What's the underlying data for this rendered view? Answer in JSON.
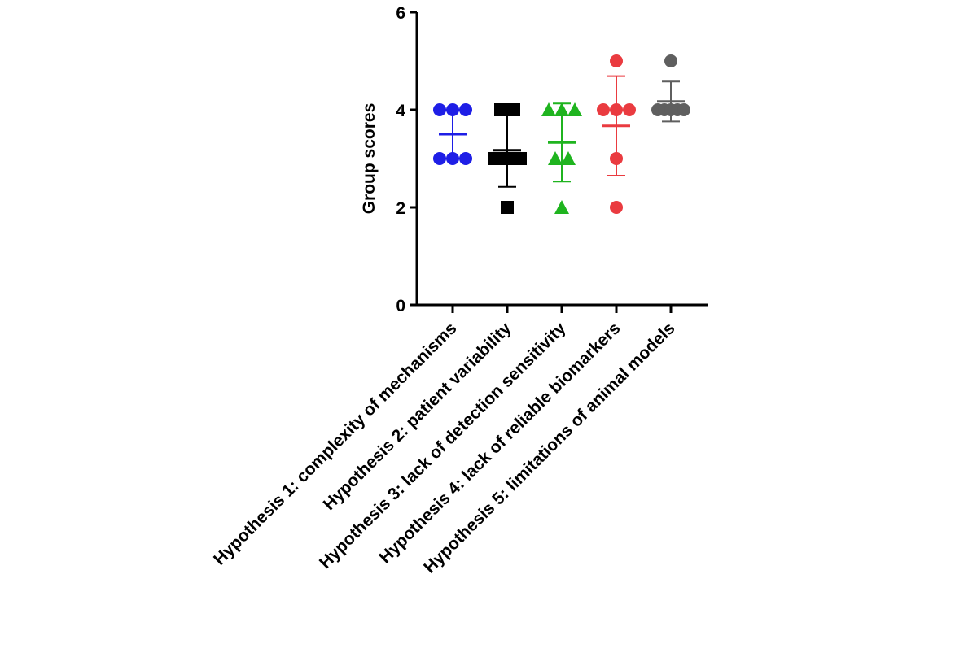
{
  "chart_data": {
    "type": "dot",
    "y_label": "Group scores",
    "categories": [
      "Hypothesis 1: complexity of mechanisms",
      "Hypothesis 2: patient variability",
      "Hypothesis 3: lack of detection sensitivity",
      "Hypothesis 4: lack of reliable biomarkers",
      "Hypothesis 5: limitations of animal models"
    ],
    "points": [
      [
        4,
        4,
        4,
        3,
        3,
        3
      ],
      [
        4,
        4,
        3,
        3,
        3,
        2
      ],
      [
        4,
        4,
        4,
        3,
        3,
        2
      ],
      [
        5,
        4,
        4,
        4,
        3,
        2
      ],
      [
        5,
        4,
        4,
        4,
        4,
        4
      ]
    ],
    "means": [
      3.5,
      3.17,
      3.33,
      3.67,
      4.17
    ],
    "errors": [
      0.5,
      0.75,
      0.8,
      1.02,
      0.41
    ],
    "colors": [
      "#1e1ee6",
      "#000000",
      "#1fb41f",
      "#ea3b40",
      "#5f5f5f"
    ],
    "markers": [
      "circle",
      "square",
      "triangle",
      "circle",
      "circle"
    ],
    "ylim": [
      0,
      6
    ],
    "yticks": [
      0,
      2,
      4,
      6
    ]
  }
}
